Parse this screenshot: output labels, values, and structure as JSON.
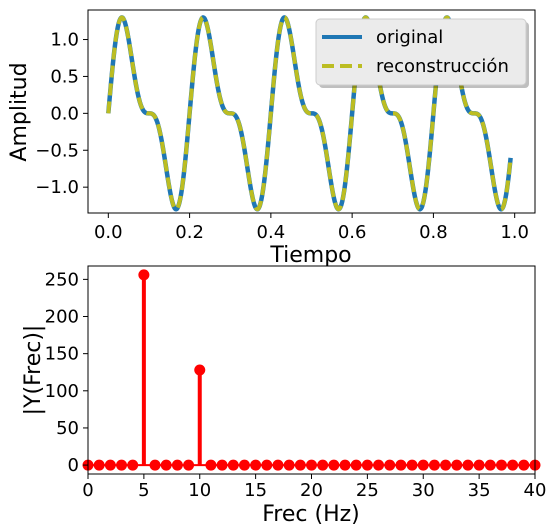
{
  "chart_data": [
    {
      "type": "line",
      "xlabel": "Tiempo",
      "ylabel": "Amplitud",
      "xlim": [
        -0.05,
        1.05
      ],
      "ylim": [
        -1.35,
        1.4
      ],
      "xticks": [
        0.0,
        0.2,
        0.4,
        0.6,
        0.8,
        1.0
      ],
      "xtick_labels": [
        "0.0",
        "0.2",
        "0.4",
        "0.6",
        "0.8",
        "1.0"
      ],
      "yticks": [
        -1.0,
        -0.5,
        0.0,
        0.5,
        1.0
      ],
      "ytick_labels": [
        "−1.0",
        "−0.5",
        "0.0",
        "0.5",
        "1.0"
      ],
      "function": "sin(2*pi*5*t) + 0.5*sin(2*pi*10*t)",
      "x_range": [
        0.0,
        0.99
      ],
      "legend_placement": "upper-right",
      "grid": false,
      "series": [
        {
          "name": "original",
          "color": "#1f77b4",
          "style": "solid"
        },
        {
          "name": "reconstrucción",
          "color": "#bcbd22",
          "style": "dashed"
        }
      ]
    },
    {
      "type": "stem",
      "xlabel": "Frec (Hz)",
      "ylabel": "|Y(Frec)|",
      "xlim": [
        0,
        40
      ],
      "ylim": [
        -12,
        268
      ],
      "xticks": [
        0,
        5,
        10,
        15,
        20,
        25,
        30,
        35,
        40
      ],
      "xtick_labels": [
        "0",
        "5",
        "10",
        "15",
        "20",
        "25",
        "30",
        "35",
        "40"
      ],
      "yticks": [
        0,
        50,
        100,
        150,
        200,
        250
      ],
      "ytick_labels": [
        "0",
        "50",
        "100",
        "150",
        "200",
        "250"
      ],
      "color": "#ff0000",
      "grid": false,
      "x": [
        0,
        1,
        2,
        3,
        4,
        5,
        6,
        7,
        8,
        9,
        10,
        11,
        12,
        13,
        14,
        15,
        16,
        17,
        18,
        19,
        20,
        21,
        22,
        23,
        24,
        25,
        26,
        27,
        28,
        29,
        30,
        31,
        32,
        33,
        34,
        35,
        36,
        37,
        38,
        39,
        40
      ],
      "values": [
        0,
        0,
        0,
        0,
        0,
        256,
        0,
        0,
        0,
        0,
        128,
        0,
        0,
        0,
        0,
        0,
        0,
        0,
        0,
        0,
        0,
        0,
        0,
        0,
        0,
        0,
        0,
        0,
        0,
        0,
        0,
        0,
        0,
        0,
        0,
        0,
        0,
        0,
        0,
        0,
        0
      ]
    }
  ]
}
